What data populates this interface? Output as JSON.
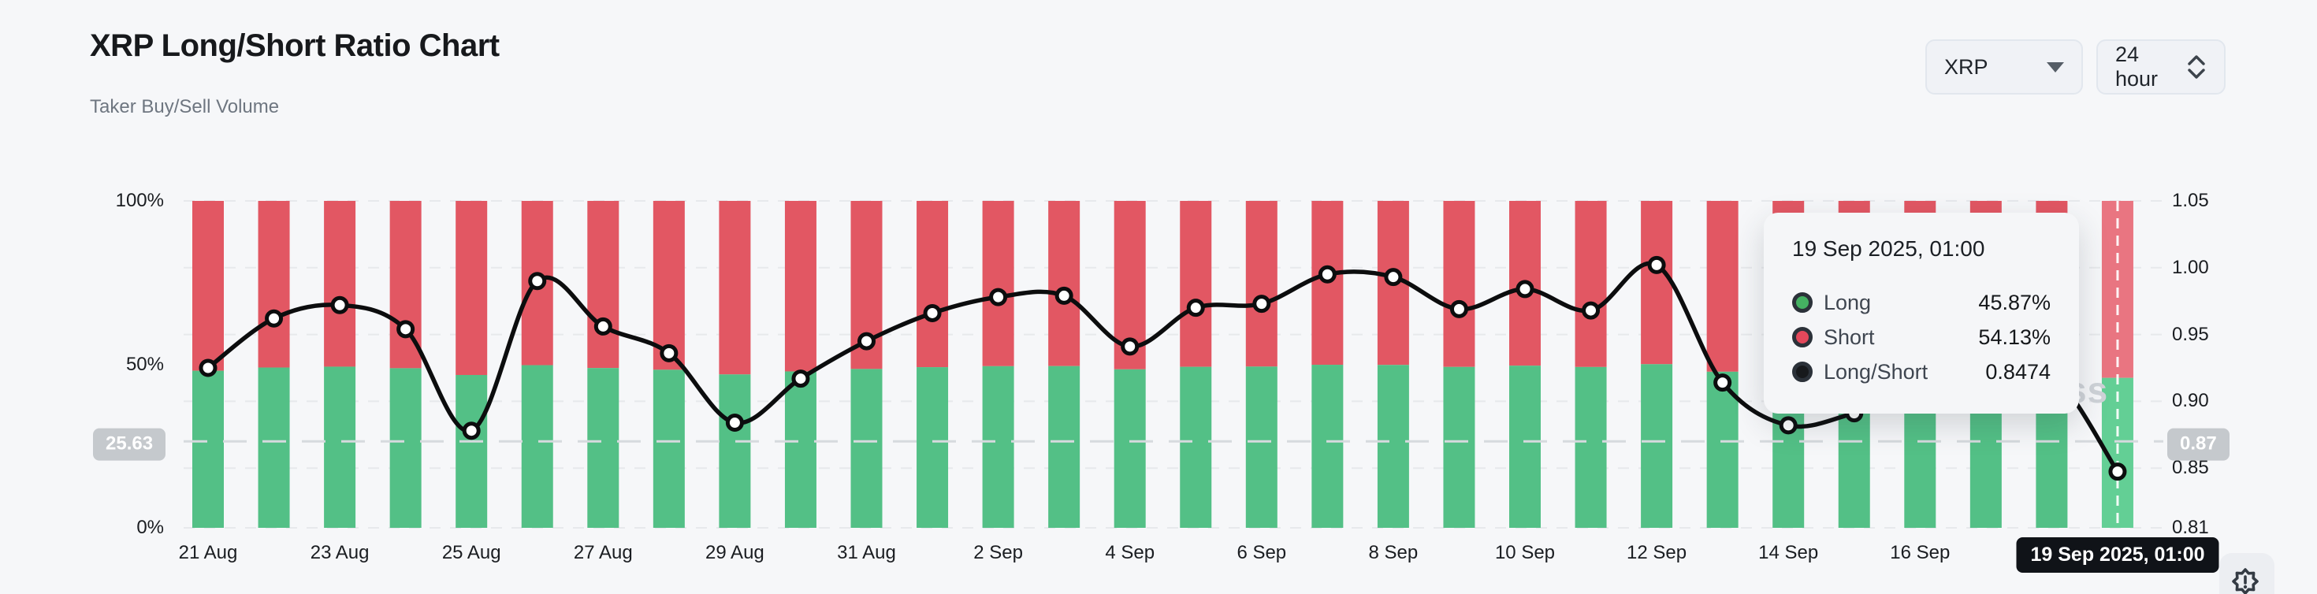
{
  "header": {
    "title": "XRP Long/Short Ratio Chart",
    "subtitle": "Taker Buy/Sell Volume"
  },
  "controls": {
    "coin_select": {
      "value": "XRP",
      "icon": "caret-down-icon"
    },
    "interval_select": {
      "value": "24 hour",
      "icon": "up-down-chevrons-icon"
    }
  },
  "tooltip": {
    "title": "19 Sep 2025, 01:00",
    "rows": [
      {
        "label": "Long",
        "value": "45.87%",
        "dot_color": "#45b162"
      },
      {
        "label": "Short",
        "value": "54.13%",
        "dot_color": "#e3485b"
      },
      {
        "label": "Long/Short",
        "value": "0.8474",
        "dot_color": "#17191c"
      }
    ]
  },
  "crosshair": {
    "x_label": "19 Sep 2025, 01:00",
    "left_value_badge": "25.63",
    "right_value_badge": "0.87",
    "line_value": 0.87
  },
  "watermark_fragment": "ss",
  "chart_data": {
    "type": "bar",
    "subtype": "stacked-percent-bars-with-line-overlay",
    "title": "XRP Long/Short Ratio Chart",
    "x_tick_labels": [
      "21 Aug",
      "23 Aug",
      "25 Aug",
      "27 Aug",
      "29 Aug",
      "31 Aug",
      "2 Sep",
      "4 Sep",
      "6 Sep",
      "8 Sep",
      "10 Sep",
      "12 Sep",
      "14 Sep",
      "16 Sep",
      "18 Sep"
    ],
    "categories": [
      "21 Aug",
      "22 Aug",
      "23 Aug",
      "24 Aug",
      "25 Aug",
      "26 Aug",
      "27 Aug",
      "28 Aug",
      "29 Aug",
      "30 Aug",
      "31 Aug",
      "1 Sep",
      "2 Sep",
      "3 Sep",
      "4 Sep",
      "5 Sep",
      "6 Sep",
      "7 Sep",
      "8 Sep",
      "9 Sep",
      "10 Sep",
      "11 Sep",
      "12 Sep",
      "13 Sep",
      "14 Sep",
      "15 Sep",
      "16 Sep",
      "17 Sep",
      "18 Sep",
      "19 Sep"
    ],
    "series": [
      {
        "name": "Long",
        "unit": "%",
        "color": "#53c086",
        "values": [
          48.05,
          49.03,
          49.29,
          48.82,
          46.75,
          49.75,
          48.88,
          48.35,
          46.92,
          47.84,
          48.59,
          49.14,
          49.44,
          49.47,
          48.48,
          49.24,
          49.32,
          49.87,
          49.82,
          49.21,
          49.6,
          49.19,
          50.05,
          47.75,
          46.86,
          47.12,
          47.51,
          47.78,
          47.92,
          45.87
        ]
      },
      {
        "name": "Short",
        "unit": "%",
        "color": "#e25763",
        "values": [
          51.95,
          50.97,
          50.71,
          51.18,
          53.25,
          50.25,
          51.12,
          51.65,
          53.08,
          52.16,
          51.41,
          50.86,
          50.56,
          50.53,
          51.52,
          50.76,
          50.68,
          50.13,
          50.18,
          50.79,
          50.4,
          50.81,
          49.95,
          52.25,
          53.14,
          52.88,
          52.49,
          52.22,
          52.08,
          54.13
        ]
      },
      {
        "name": "Long/Short",
        "unit": "ratio",
        "color": "#0c0d0e",
        "values": [
          0.925,
          0.962,
          0.972,
          0.954,
          0.878,
          0.99,
          0.956,
          0.936,
          0.884,
          0.917,
          0.945,
          0.966,
          0.978,
          0.979,
          0.941,
          0.97,
          0.973,
          0.995,
          0.993,
          0.969,
          0.984,
          0.968,
          1.002,
          0.914,
          0.882,
          0.891,
          0.905,
          0.915,
          0.92,
          0.8474
        ]
      }
    ],
    "hovered_index": 29,
    "left_axis": {
      "ticks": [
        {
          "label": "100%",
          "pct": 100
        },
        {
          "label": "50%",
          "pct": 50
        },
        {
          "label": "0%",
          "pct": 0
        }
      ],
      "range": [
        0,
        100
      ]
    },
    "right_axis": {
      "ticks": [
        {
          "label": "1.05",
          "v": 1.05
        },
        {
          "label": "1.00",
          "v": 1.0
        },
        {
          "label": "0.95",
          "v": 0.95
        },
        {
          "label": "0.90",
          "v": 0.9
        },
        {
          "label": "0.85",
          "v": 0.85
        },
        {
          "label": "0.81",
          "v": 0.8055
        }
      ],
      "range": [
        0.805,
        1.05
      ]
    },
    "grid": "horizontal-dashed",
    "legend_position": "tooltip-only",
    "colors": {
      "long": "#53c086",
      "short": "#e25763",
      "long_hl": "#63cf95",
      "short_hl": "#e97581",
      "line": "#0c0d0e"
    }
  }
}
